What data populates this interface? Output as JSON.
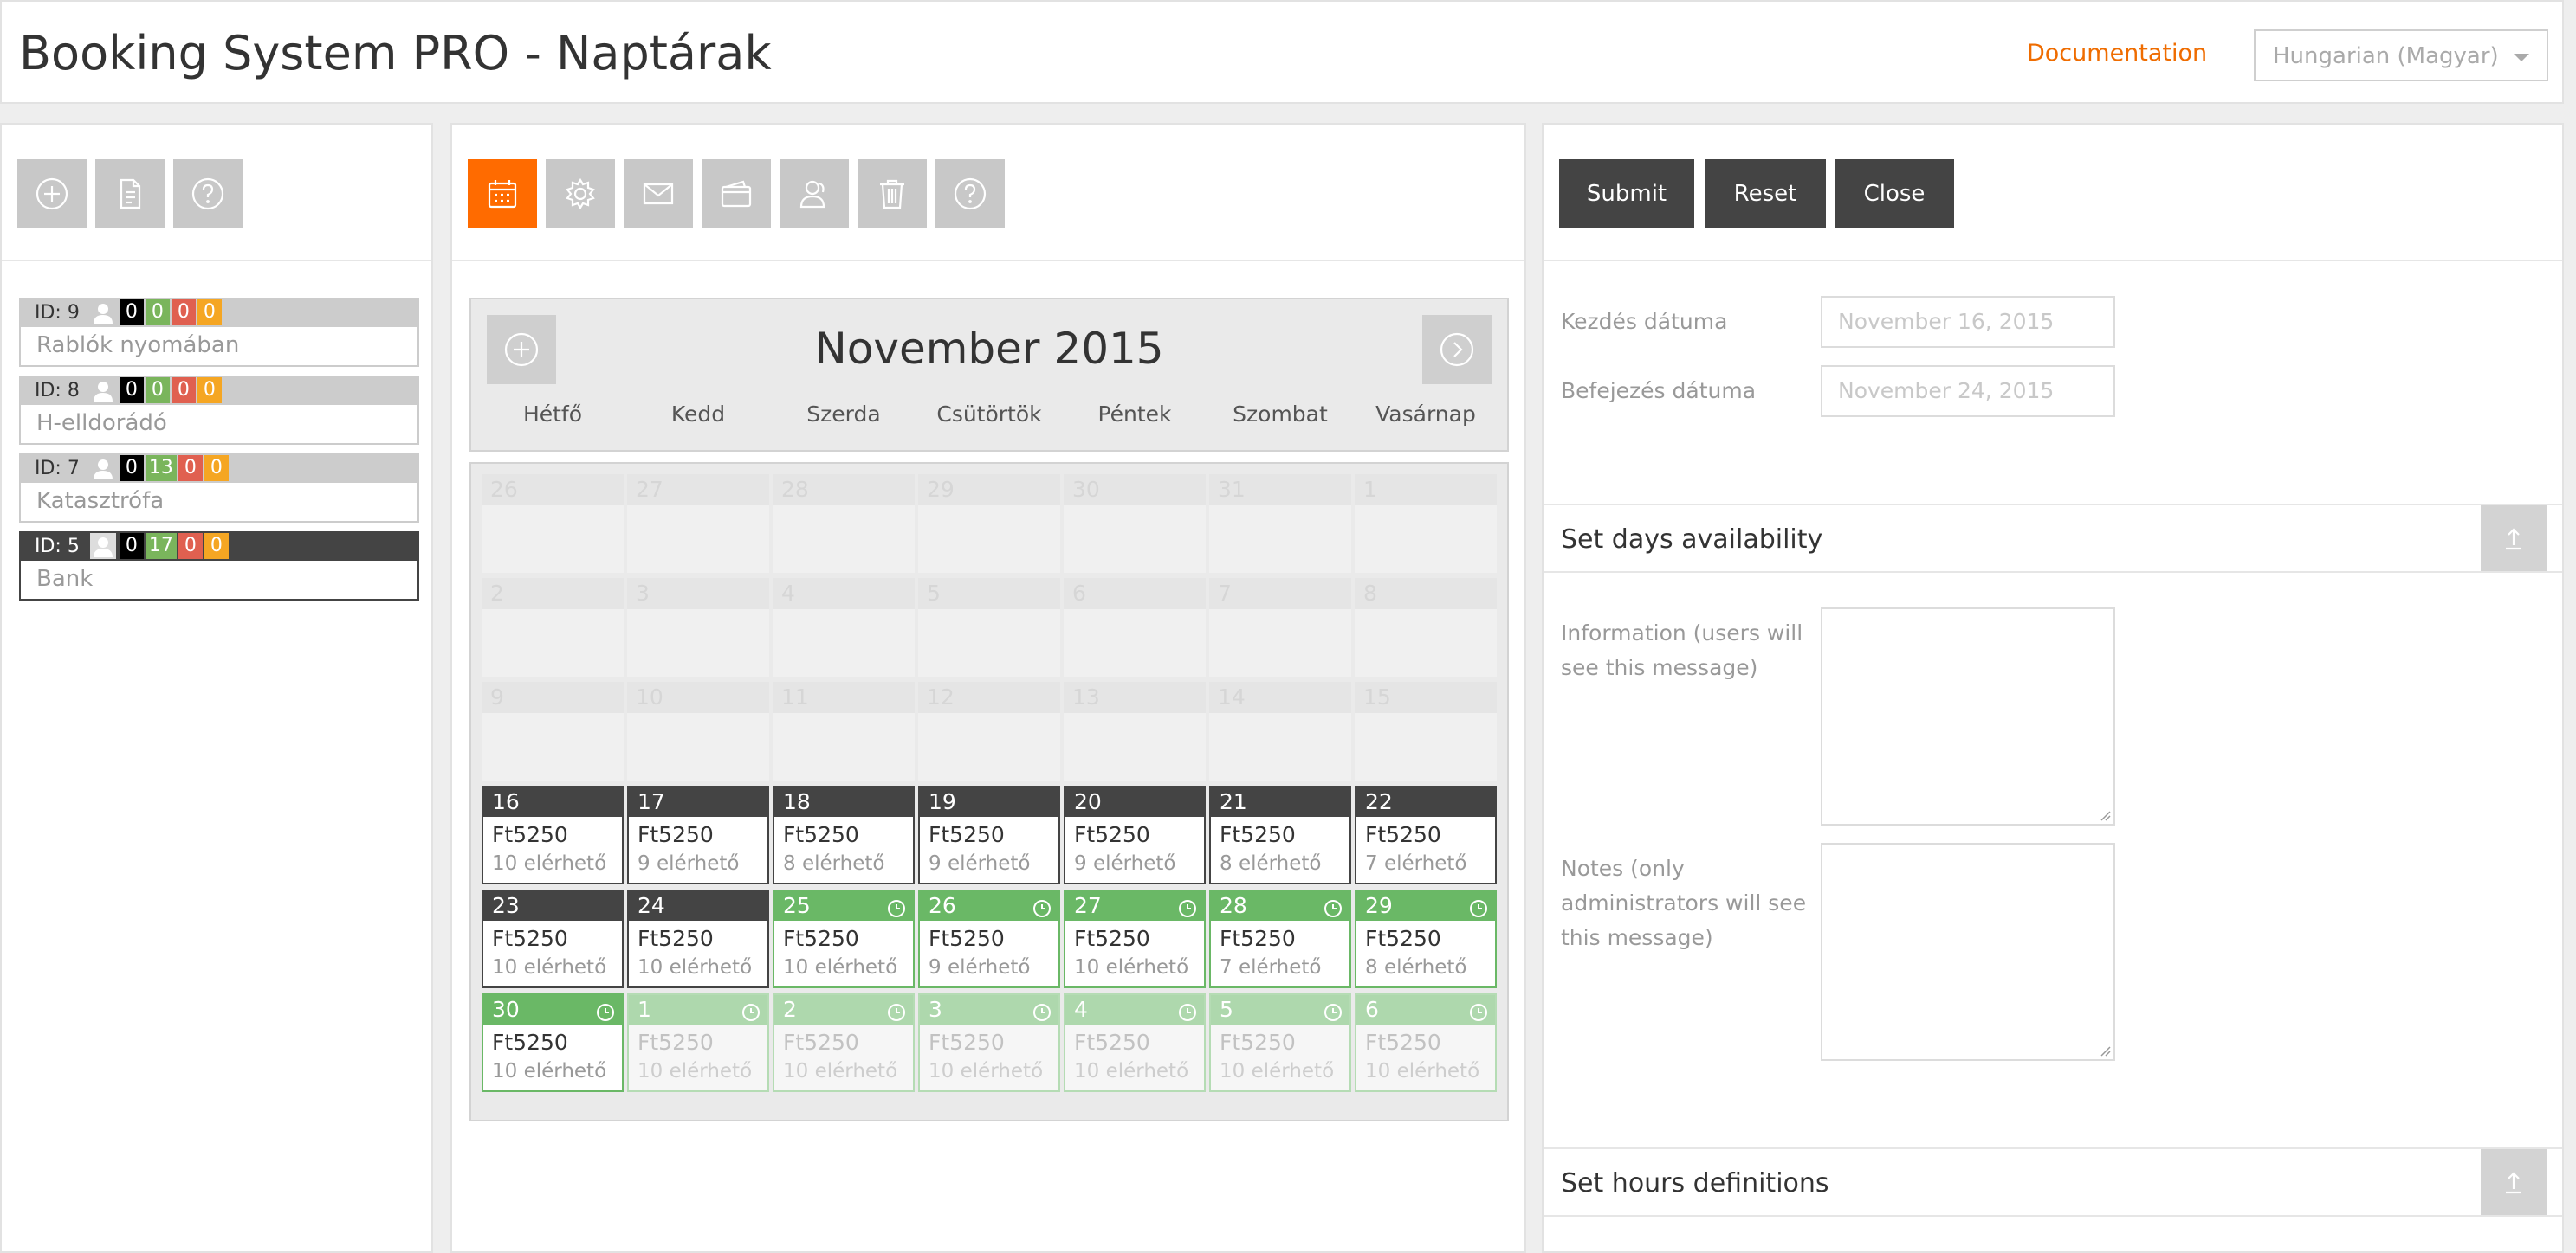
{
  "header": {
    "title": "Booking System PRO - Naptárak",
    "documentation_link": "Documentation",
    "language_select": "Hungarian (Magyar)"
  },
  "left_toolbar": {
    "icons": [
      "add-calendar-icon",
      "duplicate-calendar-icon",
      "help-icon"
    ]
  },
  "calendars": [
    {
      "id_label": "ID: 9",
      "counts": [
        "0",
        "0",
        "0",
        "0"
      ],
      "name": "Rablók nyomában",
      "selected": false
    },
    {
      "id_label": "ID: 8",
      "counts": [
        "0",
        "0",
        "0",
        "0"
      ],
      "name": "H-elldorádó",
      "selected": false
    },
    {
      "id_label": "ID: 7",
      "counts": [
        "0",
        "13",
        "0",
        "0"
      ],
      "name": "Katasztrófa",
      "selected": false
    },
    {
      "id_label": "ID: 5",
      "counts": [
        "0",
        "17",
        "0",
        "0"
      ],
      "name": "Bank",
      "selected": true
    }
  ],
  "mid_toolbar": {
    "icons": [
      "calendar-icon",
      "settings-icon",
      "email-icon",
      "payment-icon",
      "users-icon",
      "delete-icon",
      "help-icon"
    ],
    "active": "calendar-icon"
  },
  "calendar": {
    "month_title": "November 2015",
    "weekdays": [
      "Hétfő",
      "Kedd",
      "Szerda",
      "Csütörtök",
      "Péntek",
      "Szombat",
      "Vasárnap"
    ],
    "weeks": [
      [
        {
          "d": "26",
          "s": "past"
        },
        {
          "d": "27",
          "s": "past"
        },
        {
          "d": "28",
          "s": "past"
        },
        {
          "d": "29",
          "s": "past"
        },
        {
          "d": "30",
          "s": "past"
        },
        {
          "d": "31",
          "s": "past"
        },
        {
          "d": "1",
          "s": "past"
        }
      ],
      [
        {
          "d": "2",
          "s": "past"
        },
        {
          "d": "3",
          "s": "past"
        },
        {
          "d": "4",
          "s": "past"
        },
        {
          "d": "5",
          "s": "past"
        },
        {
          "d": "6",
          "s": "past"
        },
        {
          "d": "7",
          "s": "past"
        },
        {
          "d": "8",
          "s": "past"
        }
      ],
      [
        {
          "d": "9",
          "s": "past"
        },
        {
          "d": "10",
          "s": "past"
        },
        {
          "d": "11",
          "s": "past"
        },
        {
          "d": "12",
          "s": "past"
        },
        {
          "d": "13",
          "s": "past"
        },
        {
          "d": "14",
          "s": "past"
        },
        {
          "d": "15",
          "s": "past"
        }
      ],
      [
        {
          "d": "16",
          "s": "dark",
          "price": "Ft5250",
          "avail": "10 elérhető"
        },
        {
          "d": "17",
          "s": "dark",
          "price": "Ft5250",
          "avail": "9 elérhető"
        },
        {
          "d": "18",
          "s": "dark",
          "price": "Ft5250",
          "avail": "8 elérhető"
        },
        {
          "d": "19",
          "s": "dark",
          "price": "Ft5250",
          "avail": "9 elérhető"
        },
        {
          "d": "20",
          "s": "dark",
          "price": "Ft5250",
          "avail": "9 elérhető"
        },
        {
          "d": "21",
          "s": "dark",
          "price": "Ft5250",
          "avail": "8 elérhető"
        },
        {
          "d": "22",
          "s": "dark",
          "price": "Ft5250",
          "avail": "7 elérhető"
        }
      ],
      [
        {
          "d": "23",
          "s": "dark",
          "price": "Ft5250",
          "avail": "10 elérhető"
        },
        {
          "d": "24",
          "s": "dark",
          "price": "Ft5250",
          "avail": "10 elérhető"
        },
        {
          "d": "25",
          "s": "green",
          "price": "Ft5250",
          "avail": "10 elérhető"
        },
        {
          "d": "26",
          "s": "green",
          "price": "Ft5250",
          "avail": "9 elérhető"
        },
        {
          "d": "27",
          "s": "green",
          "price": "Ft5250",
          "avail": "10 elérhető"
        },
        {
          "d": "28",
          "s": "green",
          "price": "Ft5250",
          "avail": "7 elérhető"
        },
        {
          "d": "29",
          "s": "green",
          "price": "Ft5250",
          "avail": "8 elérhető"
        }
      ],
      [
        {
          "d": "30",
          "s": "green",
          "price": "Ft5250",
          "avail": "10 elérhető"
        },
        {
          "d": "1",
          "s": "light",
          "price": "Ft5250",
          "avail": "10 elérhető"
        },
        {
          "d": "2",
          "s": "light",
          "price": "Ft5250",
          "avail": "10 elérhető"
        },
        {
          "d": "3",
          "s": "light",
          "price": "Ft5250",
          "avail": "10 elérhető"
        },
        {
          "d": "4",
          "s": "light",
          "price": "Ft5250",
          "avail": "10 elérhető"
        },
        {
          "d": "5",
          "s": "light",
          "price": "Ft5250",
          "avail": "10 elérhető"
        },
        {
          "d": "6",
          "s": "light",
          "price": "Ft5250",
          "avail": "10 elérhető"
        }
      ]
    ]
  },
  "form": {
    "submit": "Submit",
    "reset": "Reset",
    "close": "Close",
    "start_date_label": "Kezdés dátuma",
    "start_date_value": "November 16, 2015",
    "end_date_label": "Befejezés dátuma",
    "end_date_value": "November 24, 2015",
    "section_availability": "Set days availability",
    "info_label": "Information (users will see this message)",
    "notes_label": "Notes (only administrators will see this message)",
    "section_hours": "Set hours definitions"
  },
  "colors": {
    "accent": "#ff6b00",
    "link": "#ef6c00",
    "dark": "#444444",
    "available": "#6ab866"
  }
}
